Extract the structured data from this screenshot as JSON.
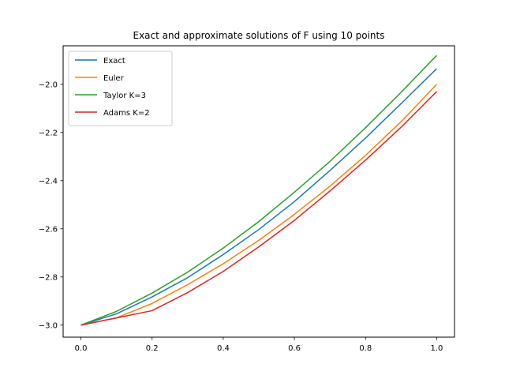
{
  "chart_data": {
    "type": "line",
    "title": "Exact and approximate solutions of F using 10 points",
    "xlabel": "",
    "ylabel": "",
    "xlim": [
      -0.05,
      1.05
    ],
    "ylim": [
      -3.05,
      -1.84
    ],
    "x_ticks": [
      0.0,
      0.2,
      0.4,
      0.6,
      0.8,
      1.0
    ],
    "x_tick_labels": [
      "0.0",
      "0.2",
      "0.4",
      "0.6",
      "0.8",
      "1.0"
    ],
    "y_ticks": [
      -3.0,
      -2.8,
      -2.6,
      -2.4,
      -2.2,
      -2.0
    ],
    "y_tick_labels": [
      "−3.0",
      "−2.8",
      "−2.6",
      "−2.4",
      "−2.2",
      "−2.0"
    ],
    "grid": false,
    "legend_position": "top-left",
    "x": [
      0.0,
      0.1,
      0.2,
      0.3,
      0.4,
      0.5,
      0.6,
      0.7,
      0.8,
      0.9,
      1.0
    ],
    "series": [
      {
        "name": "Exact",
        "color": "#1f77b4",
        "values": [
          -3.0,
          -2.953,
          -2.883,
          -2.803,
          -2.707,
          -2.603,
          -2.487,
          -2.358,
          -2.223,
          -2.08,
          -1.935
        ]
      },
      {
        "name": "Euler",
        "color": "#ff7f0e",
        "values": [
          -3.0,
          -2.97,
          -2.91,
          -2.832,
          -2.745,
          -2.648,
          -2.54,
          -2.423,
          -2.295,
          -2.155,
          -2.0
        ]
      },
      {
        "name": "Taylor K=3",
        "color": "#2ca02c",
        "values": [
          -3.0,
          -2.943,
          -2.867,
          -2.78,
          -2.68,
          -2.57,
          -2.448,
          -2.32,
          -2.18,
          -2.033,
          -1.88
        ]
      },
      {
        "name": "Adams K=2",
        "color": "#d62728",
        "values": [
          -3.0,
          -2.97,
          -2.94,
          -2.865,
          -2.777,
          -2.675,
          -2.565,
          -2.443,
          -2.315,
          -2.178,
          -2.03
        ]
      }
    ]
  }
}
